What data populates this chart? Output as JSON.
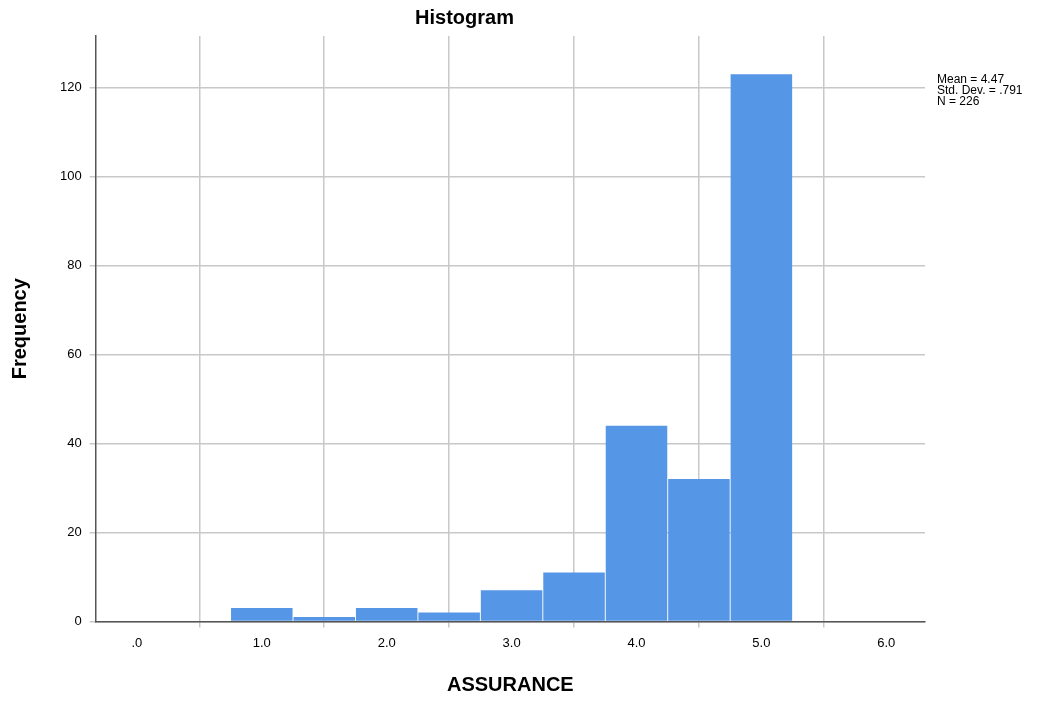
{
  "chart_data": {
    "type": "histogram",
    "title": "Histogram",
    "xlabel": "ASSURANCE",
    "ylabel": "Frequency",
    "bins": [
      0.75,
      1.25,
      1.75,
      2.25,
      2.75,
      3.25,
      3.75,
      4.25,
      4.75,
      5.25
    ],
    "values": [
      3,
      1,
      3,
      2,
      7,
      11,
      44,
      32,
      123
    ],
    "color": "#5596e6",
    "xlim": [
      -0.33,
      6.31
    ],
    "xticks": [
      {
        "value": 0,
        "label": ".0"
      },
      {
        "value": 1,
        "label": "1.0"
      },
      {
        "value": 2,
        "label": "2.0"
      },
      {
        "value": 3,
        "label": "3.0"
      },
      {
        "value": 4,
        "label": "4.0"
      },
      {
        "value": 5,
        "label": "5.0"
      },
      {
        "value": 6,
        "label": "6.0"
      }
    ],
    "ylim": [
      0,
      131.6
    ],
    "yticks": [
      0,
      20,
      40,
      60,
      80,
      100,
      120
    ],
    "grid": true,
    "legend": false,
    "annotations": [
      "Mean = 4.47",
      "Std. Dev. = .791",
      "N = 226"
    ]
  }
}
